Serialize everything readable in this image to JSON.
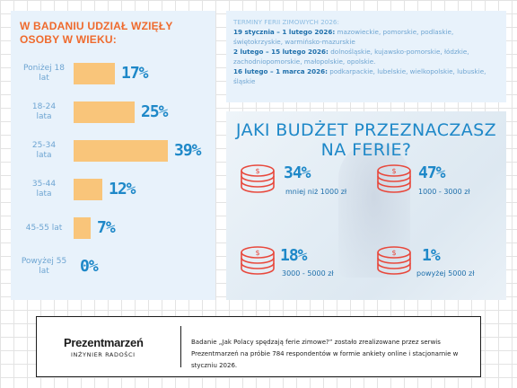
{
  "colors": {
    "orange": "#ef6a2d",
    "bar": "#f9c57a",
    "blue": "#1e88c8",
    "light_blue_label": "#6ea5d2",
    "panel": "#e8f2fb",
    "coin": "#e8483c"
  },
  "chart_data": {
    "type": "bar",
    "orientation": "horizontal",
    "title": "W BADANIU UDZIAŁ WZIĘŁY OSOBY W WIEKU:",
    "categories": [
      "Poniżej 18 lat",
      "18-24 lata",
      "25-34 lata",
      "35-44 lata",
      "45-55 lat",
      "Powyżej 55 lat"
    ],
    "values": [
      17,
      25,
      39,
      12,
      7,
      0
    ],
    "value_labels": [
      "17%",
      "25%",
      "39%",
      "12%",
      "7%",
      "0%"
    ],
    "unit": "%",
    "xlim": [
      0,
      40
    ],
    "grid": false,
    "legend": false
  },
  "terms": {
    "heading": "TERMINY FERII ZIMOWYCH 2026:",
    "rows": [
      {
        "date": "19 stycznia – 1 lutego 2026:",
        "regions": "mazowieckie, pomorskie, podlaskie, świętokrzyskie, warmińsko-mazurskie"
      },
      {
        "date": "2 lutego – 15 lutego 2026:",
        "regions": "dolnośląskie, kujawsko-pomorskie, łódzkie, zachodniopomorskie, małopolskie, opolskie."
      },
      {
        "date": "16 lutego – 1 marca 2026:",
        "regions": "podkarpackie, lubelskie, wielkopolskie, lubuskie, śląskie"
      }
    ]
  },
  "budget": {
    "title": "JAKI BUDŻET PRZEZNACZASZ NA FERIE?",
    "items": [
      {
        "percent": "34%",
        "range": "mniej niż 1000 zł",
        "icon": "coin-stack-1-icon"
      },
      {
        "percent": "47%",
        "range": "1000 - 3000 zł",
        "icon": "coin-stack-2-icon"
      },
      {
        "percent": "18%",
        "range": "3000 - 5000 zł",
        "icon": "coin-stack-3-icon"
      },
      {
        "percent": "1%",
        "range": "powyżej 5000 zł",
        "icon": "coin-stack-4-icon"
      }
    ]
  },
  "footer": {
    "logo": "Prezentmarzeń",
    "tagline": "INŻYNIER RADOŚCI",
    "text_line1": "Badanie „Jak Polacy spędzają ferie zimowe?” zostało zrealizowane przez serwis",
    "text_line2": "Prezentmarzeń na próbie 784 respondentów w formie ankiety online i stacjonarnie w styczniu 2026."
  }
}
